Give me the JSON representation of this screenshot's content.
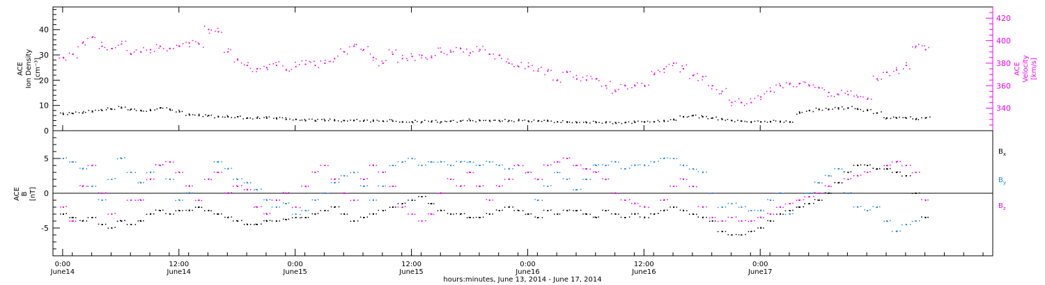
{
  "chart_data": [
    {
      "type": "scatter",
      "ylabel": [
        "ACE",
        "Ion Density",
        "[cm⁻³]"
      ],
      "ylim": [
        0,
        49
      ],
      "yticks": [
        0,
        10,
        20,
        30,
        40
      ],
      "y2label": [
        "ACE",
        "Velocity",
        "[km/s]"
      ],
      "y2lim": [
        320,
        430
      ],
      "y2ticks": [
        340,
        360,
        380,
        400,
        420
      ],
      "series": [
        {
          "name": "Ion Density",
          "color": "#000000",
          "axis": "left",
          "x": [
            0,
            1,
            2,
            3,
            4,
            5,
            6,
            7,
            8,
            9,
            10,
            11,
            12,
            13,
            14,
            15,
            16,
            17,
            18,
            19,
            20,
            21,
            22,
            23,
            24,
            25,
            26,
            27,
            28,
            29,
            30,
            31,
            32,
            33,
            34,
            35,
            36,
            37,
            38,
            39,
            40,
            41,
            42,
            43,
            44,
            45,
            46,
            47,
            48,
            49,
            50,
            51,
            52,
            53,
            54,
            55,
            56,
            57,
            58,
            59,
            60,
            61,
            62,
            63,
            64,
            65,
            66,
            67,
            68,
            69,
            70,
            71,
            72,
            73,
            74,
            75,
            76,
            77,
            78,
            79,
            80,
            81,
            82,
            83,
            84,
            85,
            86,
            87,
            88,
            89
          ],
          "y": [
            6.5,
            6.8,
            7,
            7.5,
            8,
            8.5,
            9,
            8.5,
            8,
            8,
            9,
            8.5,
            7.5,
            6.5,
            6,
            6,
            5.5,
            5.5,
            5.5,
            5,
            5,
            5,
            5,
            4.5,
            4.5,
            4,
            4,
            4,
            4,
            4,
            4,
            3.8,
            3.8,
            3.8,
            3.8,
            3.5,
            3.5,
            3.5,
            3.5,
            3.5,
            3.8,
            3.8,
            4,
            4,
            4,
            4,
            4,
            4,
            3.8,
            3.8,
            3.8,
            3.5,
            3.5,
            3.2,
            3.2,
            3.2,
            3.2,
            3.2,
            3.2,
            3.3,
            3.4,
            3.5,
            4,
            4.5,
            5.5,
            6,
            5.5,
            5,
            4.5,
            4,
            3.8,
            3.5,
            3.5,
            3.5,
            3.5,
            3.5,
            7,
            8,
            8.5,
            8.5,
            9,
            9,
            8.5,
            8,
            7,
            5,
            5,
            5,
            4.5,
            5
          ]
        },
        {
          "name": "Velocity",
          "color": "#ee00ee",
          "axis": "right",
          "x": [
            0,
            1,
            2,
            3,
            4,
            5,
            6,
            7,
            8,
            9,
            10,
            11,
            12,
            13,
            14,
            15,
            16,
            17,
            18,
            19,
            20,
            21,
            22,
            23,
            24,
            25,
            26,
            27,
            28,
            29,
            30,
            31,
            32,
            33,
            34,
            35,
            36,
            37,
            38,
            39,
            40,
            41,
            42,
            43,
            44,
            45,
            46,
            47,
            48,
            49,
            50,
            51,
            52,
            53,
            54,
            55,
            56,
            57,
            58,
            59,
            60,
            61,
            62,
            63,
            64,
            65,
            66,
            67,
            68,
            69,
            70,
            71,
            72,
            73,
            74,
            75,
            76,
            77,
            78,
            79,
            80,
            81,
            82,
            83,
            84,
            85,
            86,
            87,
            88,
            89
          ],
          "y": [
            385,
            388,
            398,
            403,
            395,
            393,
            397,
            388,
            390,
            392,
            395,
            393,
            395,
            398,
            397,
            410,
            408,
            390,
            383,
            378,
            375,
            376,
            378,
            374,
            377,
            379,
            378,
            380,
            384,
            390,
            395,
            392,
            385,
            380,
            388,
            384,
            386,
            387,
            385,
            390,
            390,
            393,
            389,
            392,
            388,
            387,
            380,
            377,
            377,
            373,
            373,
            365,
            372,
            366,
            365,
            366,
            360,
            355,
            360,
            360,
            360,
            370,
            375,
            380,
            375,
            369,
            368,
            360,
            355,
            345,
            345,
            345,
            350,
            355,
            360,
            362,
            362,
            360,
            358,
            354,
            352,
            352,
            350,
            348,
            366,
            372,
            374,
            378,
            395,
            392
          ]
        }
      ]
    },
    {
      "type": "scatter",
      "ylabel": [
        "ACE",
        "B",
        "[nT]"
      ],
      "ylim": [
        -9,
        9
      ],
      "yticks": [
        -5,
        0,
        5
      ],
      "zero_line": true,
      "legend": {
        "position": "right"
      },
      "series": [
        {
          "name": "Bx",
          "label_main": "B",
          "label_sub": "x",
          "color": "#000000",
          "x": [
            0,
            1,
            2,
            3,
            4,
            5,
            6,
            7,
            8,
            9,
            10,
            11,
            12,
            13,
            14,
            15,
            16,
            17,
            18,
            19,
            20,
            21,
            22,
            23,
            24,
            25,
            26,
            27,
            28,
            29,
            30,
            31,
            32,
            33,
            34,
            35,
            36,
            37,
            38,
            39,
            40,
            41,
            42,
            43,
            44,
            45,
            46,
            47,
            48,
            49,
            50,
            51,
            52,
            53,
            54,
            55,
            56,
            57,
            58,
            59,
            60,
            61,
            62,
            63,
            64,
            65,
            66,
            67,
            68,
            69,
            70,
            71,
            72,
            73,
            74,
            75,
            76,
            77,
            78,
            79,
            80,
            81,
            82,
            83,
            84,
            85,
            86,
            87,
            88,
            89
          ],
          "y": [
            -3,
            -3.5,
            -4,
            -3.5,
            -4.5,
            -5,
            -4,
            -4.5,
            -4,
            -3,
            -2.5,
            -3,
            -2.5,
            -2.5,
            -2,
            -2.5,
            -3,
            -3.5,
            -4,
            -4.5,
            -4.5,
            -4,
            -4,
            -3.8,
            -3.5,
            -3.5,
            -3,
            -2.5,
            -2,
            -3,
            -4,
            -3.5,
            -3,
            -2.5,
            -2,
            -1.5,
            -1,
            -0.5,
            -1.5,
            -2.5,
            -3,
            -3,
            -3.5,
            -3.5,
            -3,
            -2.5,
            -2,
            -2.5,
            -3,
            -3.5,
            -2.5,
            -3,
            -2.5,
            -2.5,
            -3,
            -3.5,
            -2.5,
            -3,
            -3.5,
            -3,
            -3.5,
            -3,
            -2.5,
            -2,
            -2.5,
            -3,
            -3.5,
            -4,
            -5.5,
            -6,
            -6,
            -5.5,
            -5,
            -4,
            -3,
            -2.5,
            -2,
            -1.5,
            -1,
            0,
            1.5,
            3,
            4,
            4,
            3.5,
            3.5,
            3,
            2.5,
            0,
            -3.5
          ]
        },
        {
          "name": "By",
          "label_main": "B",
          "label_sub": "y",
          "color": "#1e88e5",
          "x": [
            0,
            1,
            2,
            3,
            4,
            5,
            6,
            7,
            8,
            9,
            10,
            11,
            12,
            13,
            14,
            15,
            16,
            17,
            18,
            19,
            20,
            21,
            22,
            23,
            24,
            25,
            26,
            27,
            28,
            29,
            30,
            31,
            32,
            33,
            34,
            35,
            36,
            37,
            38,
            39,
            40,
            41,
            42,
            43,
            44,
            45,
            46,
            47,
            48,
            49,
            50,
            51,
            52,
            53,
            54,
            55,
            56,
            57,
            58,
            59,
            60,
            61,
            62,
            63,
            64,
            65,
            66,
            67,
            68,
            69,
            70,
            71,
            72,
            73,
            74,
            75,
            76,
            77,
            78,
            79,
            80,
            81,
            82,
            83,
            84,
            85,
            86,
            87,
            88,
            89
          ],
          "y": [
            5,
            4.5,
            3.5,
            1,
            -1,
            2,
            5,
            3,
            1.5,
            3,
            4,
            2,
            -1,
            0,
            -2,
            2,
            4.5,
            3.5,
            2,
            1.5,
            0.5,
            -1,
            -2,
            -1.5,
            -3,
            -2.5,
            -1,
            0,
            1.5,
            2.5,
            3,
            1,
            -1,
            1,
            4,
            4.5,
            5,
            4,
            4.5,
            4.5,
            4,
            4.5,
            4.5,
            4,
            4.5,
            4,
            3.5,
            4,
            3,
            -1,
            1,
            3,
            2,
            0.5,
            2,
            4,
            4,
            4.5,
            3.5,
            4,
            4,
            4.5,
            5,
            5,
            4,
            3.5,
            3,
            0,
            -2,
            -1.5,
            -2,
            -2.5,
            -2.5,
            -1,
            0,
            -3,
            -2,
            0,
            1.5,
            2.5,
            3.5,
            0,
            -2,
            -2.5,
            -2,
            -4,
            -5.5,
            -4.5,
            -4,
            -3.5
          ]
        },
        {
          "name": "Bz",
          "label_main": "B",
          "label_sub": "z",
          "color": "#ee00ee",
          "x": [
            0,
            1,
            2,
            3,
            4,
            5,
            6,
            7,
            8,
            9,
            10,
            11,
            12,
            13,
            14,
            15,
            16,
            17,
            18,
            19,
            20,
            21,
            22,
            23,
            24,
            25,
            26,
            27,
            28,
            29,
            30,
            31,
            32,
            33,
            34,
            35,
            36,
            37,
            38,
            39,
            40,
            41,
            42,
            43,
            44,
            45,
            46,
            47,
            48,
            49,
            50,
            51,
            52,
            53,
            54,
            55,
            56,
            57,
            58,
            59,
            60,
            61,
            62,
            63,
            64,
            65,
            66,
            67,
            68,
            69,
            70,
            71,
            72,
            73,
            74,
            75,
            76,
            77,
            78,
            79,
            80,
            81,
            82,
            83,
            84,
            85,
            86,
            87,
            88,
            89
          ],
          "y": [
            -2,
            -4,
            1,
            4,
            0,
            -3,
            -4,
            -1,
            -1,
            2,
            4,
            4.5,
            3,
            1,
            -1,
            2,
            3,
            0,
            1,
            0.5,
            -2,
            -3,
            -1,
            0,
            -2,
            1,
            3,
            4,
            2,
            0,
            -1,
            2,
            4,
            3,
            1,
            -2,
            -3,
            -4,
            -3,
            0,
            2,
            1,
            3,
            1,
            -1,
            1,
            2,
            4,
            3,
            2,
            4,
            4.5,
            5,
            4,
            3.5,
            3,
            2,
            0,
            -1,
            -1.5,
            -2,
            -3,
            -1,
            1,
            2,
            1,
            -2,
            -3.5,
            -4,
            -3.5,
            -4,
            -4,
            -3.5,
            -3,
            -2,
            -1.5,
            -1,
            -0.5,
            0,
            1,
            1.5,
            2,
            2.5,
            3,
            3.5,
            4,
            4.5,
            4,
            3,
            -1
          ]
        }
      ]
    }
  ],
  "x_axis": {
    "range": [
      -1,
      96
    ],
    "ticks": [
      {
        "x": 0,
        "time": "0:00",
        "date": "June14"
      },
      {
        "x": 12,
        "time": "12:00",
        "date": "June14"
      },
      {
        "x": 24,
        "time": "0:00",
        "date": "June15"
      },
      {
        "x": 36,
        "time": "12:00",
        "date": "June15"
      },
      {
        "x": 48,
        "time": "0:00",
        "date": "June16"
      },
      {
        "x": 60,
        "time": "12:00",
        "date": "June16"
      },
      {
        "x": 72,
        "time": "0:00",
        "date": "June17"
      }
    ],
    "label": "hours:minutes, June 13, 2014 - June 17, 2014"
  }
}
